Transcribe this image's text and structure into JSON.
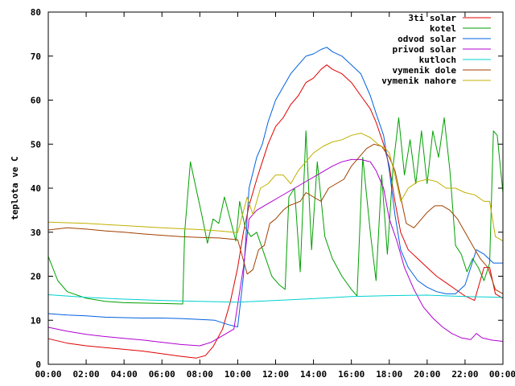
{
  "chart_data": {
    "type": "line",
    "ylabel": "teplota ve C",
    "xlabel": "",
    "x_ticks": [
      "00:00",
      "02:00",
      "04:00",
      "06:00",
      "08:00",
      "10:00",
      "12:00",
      "14:00",
      "16:00",
      "18:00",
      "20:00",
      "22:00",
      "00:00"
    ],
    "y_ticks": [
      "0",
      "10",
      "20",
      "30",
      "40",
      "50",
      "60",
      "70",
      "80"
    ],
    "xlim": [
      0,
      24
    ],
    "ylim": [
      0,
      80
    ],
    "grid": false,
    "legend_position": "top-right",
    "series": [
      {
        "name": "3ti solar",
        "color": "#e00000",
        "points": [
          [
            0,
            5.8
          ],
          [
            1,
            4.8
          ],
          [
            2,
            4.2
          ],
          [
            3,
            3.8
          ],
          [
            4,
            3.4
          ],
          [
            5,
            3.0
          ],
          [
            6,
            2.4
          ],
          [
            7,
            1.8
          ],
          [
            7.8,
            1.4
          ],
          [
            8.3,
            2.0
          ],
          [
            8.7,
            4.0
          ],
          [
            9.2,
            8.0
          ],
          [
            9.6,
            14.0
          ],
          [
            10.0,
            22.0
          ],
          [
            10.3,
            30.0
          ],
          [
            10.6,
            36.0
          ],
          [
            11.0,
            42.0
          ],
          [
            11.3,
            46.0
          ],
          [
            11.6,
            50.0
          ],
          [
            12.0,
            54.0
          ],
          [
            12.4,
            56.0
          ],
          [
            12.8,
            59.0
          ],
          [
            13.2,
            61.0
          ],
          [
            13.6,
            64.0
          ],
          [
            14.0,
            65.0
          ],
          [
            14.4,
            67.0
          ],
          [
            14.7,
            68.0
          ],
          [
            15.0,
            67.0
          ],
          [
            15.5,
            66.0
          ],
          [
            16.0,
            64.0
          ],
          [
            16.5,
            61.0
          ],
          [
            17.0,
            58.0
          ],
          [
            17.3,
            55.0
          ],
          [
            17.7,
            50.0
          ],
          [
            18.0,
            45.0
          ],
          [
            18.3,
            37.0
          ],
          [
            18.6,
            30.0
          ],
          [
            19.0,
            26.0
          ],
          [
            19.5,
            24.0
          ],
          [
            20.0,
            22.0
          ],
          [
            20.5,
            20.0
          ],
          [
            21.0,
            18.5
          ],
          [
            21.5,
            17.0
          ],
          [
            22.0,
            15.5
          ],
          [
            22.5,
            14.5
          ],
          [
            23.0,
            22.0
          ],
          [
            23.3,
            22.0
          ],
          [
            23.6,
            16.0
          ],
          [
            24,
            15.0
          ]
        ]
      },
      {
        "name": "kotel",
        "color": "#00a000",
        "points": [
          [
            0,
            24.5
          ],
          [
            0.5,
            19.0
          ],
          [
            1,
            16.5
          ],
          [
            2,
            15.0
          ],
          [
            3,
            14.3
          ],
          [
            4,
            14.0
          ],
          [
            5,
            13.9
          ],
          [
            6,
            13.8
          ],
          [
            7.1,
            13.7
          ],
          [
            7.2,
            30.0
          ],
          [
            7.5,
            46.0
          ],
          [
            7.8,
            40.0
          ],
          [
            8.1,
            34.0
          ],
          [
            8.4,
            27.5
          ],
          [
            8.7,
            33.0
          ],
          [
            9.0,
            32.0
          ],
          [
            9.3,
            38.0
          ],
          [
            9.6,
            33.0
          ],
          [
            9.9,
            28.0
          ],
          [
            10.1,
            37.0
          ],
          [
            10.4,
            31.0
          ],
          [
            10.7,
            29.0
          ],
          [
            11.0,
            30.0
          ],
          [
            11.4,
            25.0
          ],
          [
            11.8,
            20.0
          ],
          [
            12.2,
            18.0
          ],
          [
            12.5,
            17.0
          ],
          [
            12.7,
            38.0
          ],
          [
            13.0,
            40.0
          ],
          [
            13.3,
            21.0
          ],
          [
            13.6,
            53.0
          ],
          [
            13.9,
            26.0
          ],
          [
            14.2,
            46.0
          ],
          [
            14.6,
            29.0
          ],
          [
            15.0,
            24.0
          ],
          [
            15.5,
            20.0
          ],
          [
            16.0,
            17.0
          ],
          [
            16.3,
            15.5
          ],
          [
            16.6,
            47.0
          ],
          [
            17.0,
            30.0
          ],
          [
            17.3,
            19.0
          ],
          [
            17.6,
            43.0
          ],
          [
            17.9,
            25.0
          ],
          [
            18.2,
            45.0
          ],
          [
            18.5,
            56.0
          ],
          [
            18.8,
            43.0
          ],
          [
            19.1,
            51.0
          ],
          [
            19.4,
            41.0
          ],
          [
            19.7,
            53.0
          ],
          [
            20.0,
            41.0
          ],
          [
            20.3,
            53.0
          ],
          [
            20.6,
            47.0
          ],
          [
            20.9,
            56.0
          ],
          [
            21.2,
            44.0
          ],
          [
            21.5,
            27.0
          ],
          [
            21.8,
            25.0
          ],
          [
            22.1,
            21.0
          ],
          [
            22.4,
            24.0
          ],
          [
            22.7,
            22.0
          ],
          [
            23.0,
            19.0
          ],
          [
            23.3,
            23.0
          ],
          [
            23.5,
            53.0
          ],
          [
            23.7,
            52.0
          ],
          [
            24,
            39.0
          ]
        ]
      },
      {
        "name": "odvod solar",
        "color": "#0060e0",
        "points": [
          [
            0,
            11.5
          ],
          [
            1,
            11.2
          ],
          [
            2,
            11.0
          ],
          [
            3,
            10.7
          ],
          [
            4,
            10.6
          ],
          [
            5,
            10.5
          ],
          [
            6,
            10.5
          ],
          [
            7,
            10.4
          ],
          [
            8,
            10.2
          ],
          [
            8.8,
            10.0
          ],
          [
            9.5,
            9.0
          ],
          [
            10.0,
            8.5
          ],
          [
            10.3,
            20.0
          ],
          [
            10.6,
            40.0
          ],
          [
            11.0,
            47.0
          ],
          [
            11.3,
            50.0
          ],
          [
            11.6,
            55.0
          ],
          [
            12.0,
            60.0
          ],
          [
            12.4,
            63.0
          ],
          [
            12.8,
            66.0
          ],
          [
            13.2,
            68.0
          ],
          [
            13.6,
            70.0
          ],
          [
            14.0,
            70.5
          ],
          [
            14.4,
            71.5
          ],
          [
            14.7,
            72.0
          ],
          [
            15.0,
            71.0
          ],
          [
            15.5,
            70.0
          ],
          [
            16.0,
            68.0
          ],
          [
            16.5,
            66.0
          ],
          [
            17.0,
            61.0
          ],
          [
            17.3,
            57.0
          ],
          [
            17.7,
            52.0
          ],
          [
            18.0,
            44.0
          ],
          [
            18.3,
            34.0
          ],
          [
            18.6,
            26.0
          ],
          [
            19.0,
            22.0
          ],
          [
            19.5,
            19.0
          ],
          [
            20.0,
            17.5
          ],
          [
            20.5,
            16.5
          ],
          [
            21.0,
            16.0
          ],
          [
            21.5,
            16.0
          ],
          [
            22.0,
            18.0
          ],
          [
            22.3,
            22.0
          ],
          [
            22.6,
            26.0
          ],
          [
            23.0,
            25.0
          ],
          [
            23.5,
            23.0
          ],
          [
            24,
            23.0
          ]
        ]
      },
      {
        "name": "privod solar",
        "color": "#b000d0",
        "points": [
          [
            0,
            8.4
          ],
          [
            1,
            7.5
          ],
          [
            2,
            6.8
          ],
          [
            3,
            6.3
          ],
          [
            4,
            5.9
          ],
          [
            5,
            5.5
          ],
          [
            6,
            5.0
          ],
          [
            7,
            4.5
          ],
          [
            8,
            4.2
          ],
          [
            8.6,
            5.0
          ],
          [
            9.2,
            6.5
          ],
          [
            9.8,
            8.0
          ],
          [
            10.3,
            22.0
          ],
          [
            10.6,
            33.0
          ],
          [
            11.0,
            35.0
          ],
          [
            11.4,
            36.0
          ],
          [
            11.8,
            37.0
          ],
          [
            12.2,
            38.0
          ],
          [
            12.6,
            39.0
          ],
          [
            13.0,
            40.0
          ],
          [
            13.4,
            41.0
          ],
          [
            13.8,
            42.0
          ],
          [
            14.2,
            43.0
          ],
          [
            14.6,
            44.0
          ],
          [
            15.0,
            45.0
          ],
          [
            15.5,
            46.0
          ],
          [
            16.0,
            46.5
          ],
          [
            16.5,
            46.5
          ],
          [
            17.0,
            46.0
          ],
          [
            17.3,
            44.0
          ],
          [
            17.7,
            40.0
          ],
          [
            18.0,
            33.0
          ],
          [
            18.4,
            28.0
          ],
          [
            18.8,
            22.0
          ],
          [
            19.3,
            17.0
          ],
          [
            19.8,
            13.0
          ],
          [
            20.3,
            10.5
          ],
          [
            20.8,
            8.5
          ],
          [
            21.3,
            7.0
          ],
          [
            21.8,
            6.0
          ],
          [
            22.3,
            5.6
          ],
          [
            22.6,
            7.0
          ],
          [
            22.9,
            6.0
          ],
          [
            23.4,
            5.5
          ],
          [
            24,
            5.2
          ]
        ]
      },
      {
        "name": "kutloch",
        "color": "#00d0d0",
        "points": [
          [
            0,
            15.8
          ],
          [
            2,
            15.2
          ],
          [
            4,
            14.8
          ],
          [
            6,
            14.5
          ],
          [
            8,
            14.3
          ],
          [
            10,
            14.1
          ],
          [
            12,
            14.5
          ],
          [
            14,
            14.9
          ],
          [
            16,
            15.4
          ],
          [
            18,
            15.6
          ],
          [
            20,
            15.7
          ],
          [
            22,
            15.4
          ],
          [
            24,
            15.2
          ]
        ]
      },
      {
        "name": "vymenik dole",
        "color": "#a04000",
        "points": [
          [
            0,
            30.5
          ],
          [
            1,
            31.0
          ],
          [
            2,
            30.7
          ],
          [
            3,
            30.3
          ],
          [
            4,
            30.0
          ],
          [
            5,
            29.6
          ],
          [
            6,
            29.3
          ],
          [
            7,
            29.0
          ],
          [
            8,
            28.8
          ],
          [
            9,
            28.7
          ],
          [
            10,
            28.3
          ],
          [
            10.5,
            20.5
          ],
          [
            10.8,
            21.5
          ],
          [
            11.1,
            26.0
          ],
          [
            11.4,
            27.0
          ],
          [
            11.7,
            32.0
          ],
          [
            12.0,
            33.0
          ],
          [
            12.4,
            35.0
          ],
          [
            12.7,
            36.0
          ],
          [
            13.0,
            36.5
          ],
          [
            13.3,
            37.0
          ],
          [
            13.6,
            39.0
          ],
          [
            14.0,
            38.0
          ],
          [
            14.4,
            37.0
          ],
          [
            14.8,
            40.0
          ],
          [
            15.2,
            41.0
          ],
          [
            15.6,
            42.0
          ],
          [
            16.0,
            45.0
          ],
          [
            16.4,
            47.0
          ],
          [
            16.8,
            49.0
          ],
          [
            17.2,
            50.0
          ],
          [
            17.6,
            49.5
          ],
          [
            18.0,
            47.0
          ],
          [
            18.3,
            44.0
          ],
          [
            18.6,
            38.0
          ],
          [
            18.9,
            32.0
          ],
          [
            19.3,
            31.0
          ],
          [
            19.7,
            33.0
          ],
          [
            20.0,
            34.5
          ],
          [
            20.4,
            36.0
          ],
          [
            20.8,
            36.0
          ],
          [
            21.2,
            35.0
          ],
          [
            21.6,
            33.0
          ],
          [
            22.0,
            30.0
          ],
          [
            22.4,
            27.0
          ],
          [
            22.8,
            24.0
          ],
          [
            23.2,
            22.0
          ],
          [
            23.6,
            17.0
          ],
          [
            24,
            16.0
          ]
        ]
      },
      {
        "name": "vymenik nahore",
        "color": "#c0b000",
        "points": [
          [
            0,
            32.3
          ],
          [
            2,
            32.0
          ],
          [
            4,
            31.5
          ],
          [
            6,
            31.0
          ],
          [
            8,
            30.6
          ],
          [
            9,
            30.3
          ],
          [
            10,
            29.9
          ],
          [
            10.5,
            38.0
          ],
          [
            10.8,
            34.0
          ],
          [
            11.2,
            40.0
          ],
          [
            11.6,
            41.0
          ],
          [
            12.0,
            43.0
          ],
          [
            12.4,
            43.0
          ],
          [
            12.8,
            41.0
          ],
          [
            13.2,
            44.0
          ],
          [
            13.6,
            46.0
          ],
          [
            14.0,
            48.0
          ],
          [
            14.5,
            49.5
          ],
          [
            15.0,
            50.5
          ],
          [
            15.5,
            51.0
          ],
          [
            16.0,
            52.0
          ],
          [
            16.5,
            52.5
          ],
          [
            17.0,
            51.5
          ],
          [
            17.4,
            50.0
          ],
          [
            17.8,
            49.0
          ],
          [
            18.0,
            48.0
          ],
          [
            18.3,
            43.0
          ],
          [
            18.6,
            37.0
          ],
          [
            19.0,
            40.0
          ],
          [
            19.5,
            41.5
          ],
          [
            20.0,
            42.0
          ],
          [
            20.5,
            41.5
          ],
          [
            21.0,
            40.0
          ],
          [
            21.5,
            40.0
          ],
          [
            22.0,
            39.0
          ],
          [
            22.5,
            38.5
          ],
          [
            23.0,
            37.0
          ],
          [
            23.3,
            37.0
          ],
          [
            23.6,
            29.0
          ],
          [
            24,
            28.0
          ]
        ]
      }
    ]
  }
}
